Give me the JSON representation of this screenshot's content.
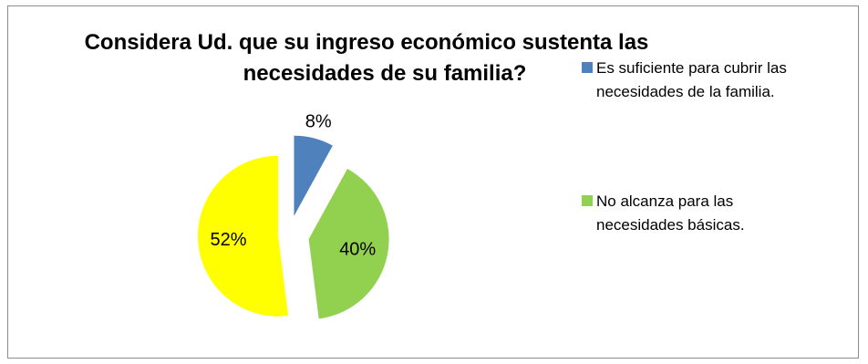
{
  "chart_data": {
    "type": "pie",
    "title_lines": [
      "Considera Ud. que su ingreso económico sustenta las",
      "necesidades de su familia?"
    ],
    "slices": [
      {
        "label": "Es suficiente para cubrir las necesidades de la familia.",
        "value": 8,
        "data_label": "8%",
        "color": "#4f81bd"
      },
      {
        "label": "No alcanza para las necesidades básicas.",
        "value": 40,
        "data_label": "40%",
        "color": "#92d050"
      },
      {
        "label": "",
        "value": 52,
        "data_label": "52%",
        "color": "#ffff00"
      }
    ],
    "legend": {
      "placement": "right",
      "entries": [
        {
          "lines": [
            "Es suficiente para cubrir las",
            "necesidades de la familia."
          ],
          "color": "#4f81bd"
        },
        {
          "lines": [
            "No alcanza para las",
            "necesidades básicas."
          ],
          "color": "#92d050"
        }
      ]
    },
    "exploded": true
  }
}
